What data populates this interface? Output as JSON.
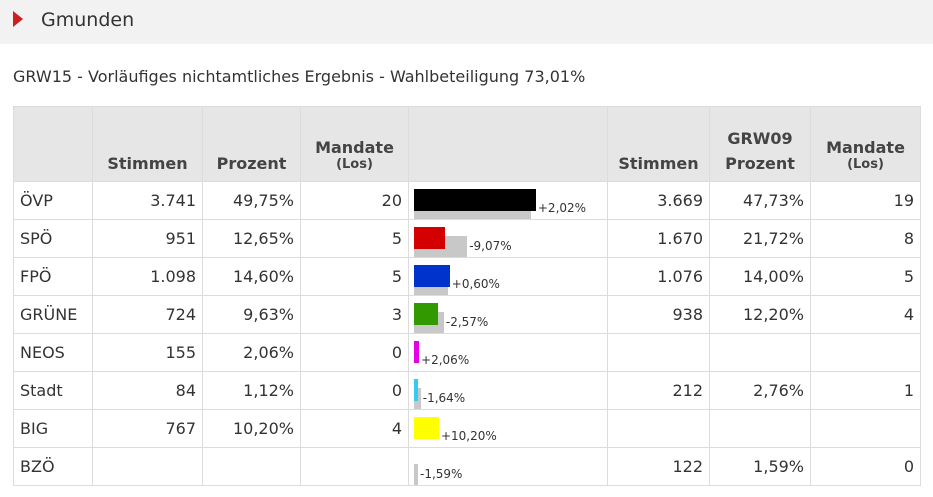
{
  "header": {
    "title": "Gmunden"
  },
  "subtitle": "GRW15 - Vorläufiges nichtamtliches Ergebnis - Wahlbeteiligung 73,01%",
  "table": {
    "columns": {
      "stimmen": "Stimmen",
      "prozent": "Prozent",
      "mandate": "Mandate",
      "los": "(Los)",
      "grw09": "GRW09",
      "stimmen09": "Stimmen",
      "prozent09": "Prozent",
      "mandate09": "Mandate",
      "los09": "(Los)"
    },
    "rows": [
      {
        "party": "ÖVP",
        "stimmen": "3.741",
        "prozent": "49,75%",
        "mandate": "20",
        "diff": "+2,02%",
        "stimmen09": "3.669",
        "prozent09": "47,73%",
        "mandate09": "19",
        "cur": 49.75,
        "prev": 47.73,
        "color": "#000000"
      },
      {
        "party": "SPÖ",
        "stimmen": "951",
        "prozent": "12,65%",
        "mandate": "5",
        "diff": "-9,07%",
        "stimmen09": "1.670",
        "prozent09": "21,72%",
        "mandate09": "8",
        "cur": 12.65,
        "prev": 21.72,
        "color": "#d40000"
      },
      {
        "party": "FPÖ",
        "stimmen": "1.098",
        "prozent": "14,60%",
        "mandate": "5",
        "diff": "+0,60%",
        "stimmen09": "1.076",
        "prozent09": "14,00%",
        "mandate09": "5",
        "cur": 14.6,
        "prev": 14.0,
        "color": "#0033cc"
      },
      {
        "party": "GRÜNE",
        "stimmen": "724",
        "prozent": "9,63%",
        "mandate": "3",
        "diff": "-2,57%",
        "stimmen09": "938",
        "prozent09": "12,20%",
        "mandate09": "4",
        "cur": 9.63,
        "prev": 12.2,
        "color": "#339900"
      },
      {
        "party": "NEOS",
        "stimmen": "155",
        "prozent": "2,06%",
        "mandate": "0",
        "diff": "+2,06%",
        "stimmen09": "",
        "prozent09": "",
        "mandate09": "",
        "cur": 2.06,
        "prev": 0,
        "color": "#e600e6"
      },
      {
        "party": "Stadt",
        "stimmen": "84",
        "prozent": "1,12%",
        "mandate": "0",
        "diff": "-1,64%",
        "stimmen09": "212",
        "prozent09": "2,76%",
        "mandate09": "1",
        "cur": 1.12,
        "prev": 2.76,
        "color": "#33ccee"
      },
      {
        "party": "BIG",
        "stimmen": "767",
        "prozent": "10,20%",
        "mandate": "4",
        "diff": "+10,20%",
        "stimmen09": "",
        "prozent09": "",
        "mandate09": "",
        "cur": 10.2,
        "prev": 0,
        "color": "#ffff00"
      },
      {
        "party": "BZÖ",
        "stimmen": "",
        "prozent": "",
        "mandate": "",
        "diff": "-1,59%",
        "stimmen09": "122",
        "prozent09": "1,59%",
        "mandate09": "0",
        "cur": 0,
        "prev": 1.59,
        "color": "#999999"
      }
    ]
  }
}
